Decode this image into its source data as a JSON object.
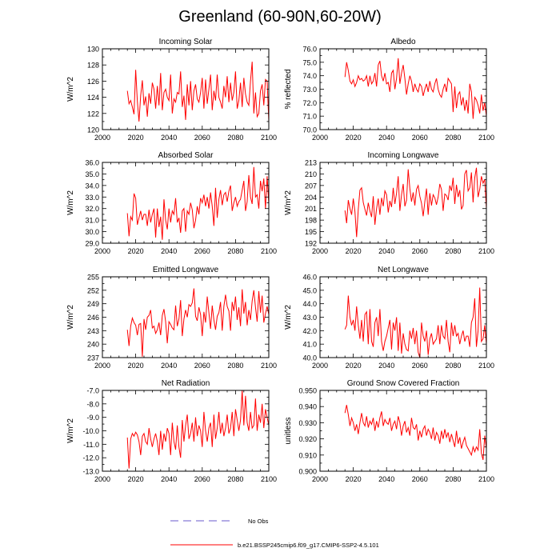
{
  "title": "Greenland (60-90N,60-20W)",
  "legend": {
    "obs_label": "No Obs",
    "obs_color": "#6a5acd",
    "model_label": "b.e21.BSSP245cmip6.f09_g17.CMIP6-SSP2-4.5.101",
    "model_color": "#ff0000"
  },
  "chart_data": [
    {
      "type": "line",
      "title": "Incoming Solar",
      "xlabel": "",
      "ylabel": "W/m^2",
      "xlim": [
        2000,
        2100
      ],
      "ylim": [
        120,
        130
      ],
      "xticks": [
        "2000",
        "2020",
        "2040",
        "2060",
        "2080",
        "2100"
      ],
      "yticks": [
        "120",
        "122",
        "124",
        "126",
        "128",
        "130"
      ],
      "ytick_values": [
        120,
        122,
        124,
        126,
        128,
        130
      ],
      "x_start": 2015,
      "values": [
        124.8,
        123.2,
        123.6,
        122.8,
        121.9,
        127.4,
        123.5,
        121.0,
        124.2,
        126.1,
        123.0,
        124.1,
        121.6,
        124.5,
        123.2,
        125.8,
        125.0,
        122.6,
        125.4,
        123.0,
        127.0,
        122.4,
        124.6,
        125.0,
        124.0,
        123.6,
        126.8,
        122.0,
        123.8,
        123.4,
        124.6,
        124.4,
        127.2,
        122.8,
        124.2,
        121.2,
        125.6,
        123.0,
        126.0,
        122.4,
        124.8,
        125.6,
        123.8,
        123.4,
        124.6,
        126.4,
        122.6,
        126.2,
        123.2,
        125.0,
        126.8,
        122.4,
        124.8,
        123.6,
        126.8,
        124.0,
        123.4,
        122.6,
        125.4,
        124.0,
        126.6,
        123.4,
        125.8,
        123.6,
        124.6,
        127.2,
        122.6,
        123.6,
        125.8,
        122.8,
        126.4,
        124.4,
        123.4,
        123.0,
        126.0,
        128.4,
        122.0,
        124.6,
        121.6,
        122.0,
        124.8,
        125.6,
        123.0,
        126.2,
        126.0,
        121.0
      ]
    },
    {
      "type": "line",
      "title": "Albedo",
      "xlabel": "",
      "ylabel": "% reflected",
      "xlim": [
        2000,
        2100
      ],
      "ylim": [
        70,
        76
      ],
      "xticks": [
        "2000",
        "2020",
        "2040",
        "2060",
        "2080",
        "2100"
      ],
      "yticks": [
        "70.0",
        "71.0",
        "72.0",
        "73.0",
        "74.0",
        "75.0",
        "76.0"
      ],
      "ytick_values": [
        70,
        71,
        72,
        73,
        74,
        75,
        76
      ],
      "x_start": 2015,
      "values": [
        73.9,
        75.0,
        74.4,
        73.6,
        73.4,
        73.7,
        73.2,
        73.5,
        74.0,
        73.7,
        73.8,
        73.6,
        73.7,
        74.0,
        73.2,
        74.0,
        73.4,
        73.6,
        74.2,
        73.2,
        74.8,
        75.1,
        74.0,
        73.6,
        74.2,
        73.4,
        73.5,
        72.8,
        74.2,
        74.4,
        73.0,
        73.8,
        75.3,
        73.4,
        74.2,
        74.8,
        73.8,
        72.6,
        73.4,
        74.0,
        73.6,
        72.8,
        73.4,
        73.0,
        72.8,
        73.4,
        73.2,
        72.5,
        73.0,
        73.4,
        72.8,
        73.6,
        73.0,
        72.8,
        73.4,
        73.8,
        73.0,
        72.6,
        72.4,
        73.0,
        73.4,
        72.8,
        73.8,
        73.6,
        73.4,
        71.3,
        73.2,
        71.6,
        72.6,
        72.8,
        71.8,
        72.4,
        71.4,
        72.2,
        71.2,
        73.4,
        72.8,
        70.8,
        72.4,
        72.2,
        71.8,
        71.2,
        72.6,
        71.4,
        72.0,
        71.0
      ]
    },
    {
      "type": "line",
      "title": "Absorbed Solar",
      "xlabel": "",
      "ylabel": "W/m^2",
      "xlim": [
        2000,
        2100
      ],
      "ylim": [
        29,
        36
      ],
      "xticks": [
        "2000",
        "2020",
        "2040",
        "2060",
        "2080",
        "2100"
      ],
      "yticks": [
        "29.0",
        "30.0",
        "31.0",
        "32.0",
        "33.0",
        "34.0",
        "35.0",
        "36.0"
      ],
      "ytick_values": [
        29,
        30,
        31,
        32,
        33,
        34,
        35,
        36
      ],
      "x_start": 2015,
      "values": [
        31.6,
        29.6,
        31.3,
        31.0,
        33.3,
        32.9,
        30.6,
        31.2,
        31.8,
        31.0,
        31.5,
        31.5,
        30.5,
        31.9,
        30.8,
        31.5,
        32.0,
        29.5,
        32.0,
        30.4,
        31.3,
        29.3,
        32.8,
        31.0,
        30.2,
        32.0,
        30.8,
        31.8,
        31.5,
        32.9,
        30.8,
        31.2,
        29.9,
        31.8,
        32.0,
        30.0,
        31.8,
        31.5,
        32.5,
        31.9,
        30.3,
        31.0,
        32.2,
        31.5,
        32.9,
        32.5,
        33.2,
        32.2,
        33.0,
        32.0,
        33.4,
        32.2,
        30.5,
        33.8,
        31.2,
        32.8,
        33.6,
        32.3,
        33.2,
        33.4,
        32.6,
        33.5,
        34.0,
        31.8,
        32.5,
        33.0,
        32.2,
        32.6,
        32.8,
        33.6,
        34.4,
        31.8,
        32.6,
        34.9,
        33.0,
        32.4,
        35.6,
        33.0,
        33.2,
        32.0,
        34.4,
        33.5,
        34.6,
        32.0,
        34.8,
        32.4
      ]
    },
    {
      "type": "line",
      "title": "Incoming Longwave",
      "xlabel": "",
      "ylabel": "W/m^2",
      "xlim": [
        2000,
        2100
      ],
      "ylim": [
        192,
        213
      ],
      "xticks": [
        "2000",
        "2020",
        "2040",
        "2060",
        "2080",
        "2100"
      ],
      "yticks": [
        "192",
        "195",
        "198",
        "201",
        "204",
        "207",
        "210",
        "213"
      ],
      "ytick_values": [
        192,
        195,
        198,
        201,
        204,
        207,
        210,
        213
      ],
      "x_start": 2015,
      "values": [
        200.5,
        197.2,
        203.2,
        201.0,
        199.4,
        203.6,
        200.2,
        193.6,
        200.8,
        205.8,
        206.4,
        202.6,
        200.8,
        199.2,
        202.5,
        200.4,
        198.8,
        204.2,
        196.8,
        201.0,
        203.6,
        199.4,
        203.8,
        201.6,
        205.6,
        204.6,
        200.0,
        203.0,
        201.4,
        206.4,
        202.2,
        205.0,
        209.4,
        200.4,
        204.6,
        207.4,
        201.6,
        203.2,
        211.2,
        206.2,
        202.8,
        205.2,
        201.8,
        206.0,
        207.0,
        204.2,
        202.4,
        199.0,
        202.8,
        206.2,
        199.4,
        205.0,
        201.8,
        204.6,
        203.8,
        202.0,
        204.0,
        207.4,
        206.0,
        200.4,
        204.8,
        204.4,
        203.2,
        207.0,
        205.6,
        209.0,
        202.2,
        207.2,
        204.0,
        205.8,
        200.8,
        201.8,
        210.0,
        211.0,
        205.6,
        206.4,
        210.4,
        202.6,
        209.0,
        211.6,
        204.0,
        206.0,
        209.4,
        207.6,
        208.6,
        201.0
      ]
    },
    {
      "type": "line",
      "title": "Emitted Longwave",
      "xlabel": "",
      "ylabel": "W/m^2",
      "xlim": [
        2000,
        2100
      ],
      "ylim": [
        237,
        255
      ],
      "xticks": [
        "2000",
        "2020",
        "2040",
        "2060",
        "2080",
        "2100"
      ],
      "yticks": [
        "237",
        "240",
        "243",
        "246",
        "249",
        "252",
        "255"
      ],
      "ytick_values": [
        237,
        240,
        243,
        246,
        249,
        252,
        255
      ],
      "x_start": 2015,
      "values": [
        243.2,
        239.6,
        244.0,
        245.8,
        244.8,
        244.2,
        242.0,
        244.4,
        244.6,
        237.2,
        245.6,
        243.2,
        246.0,
        246.4,
        247.6,
        243.6,
        244.0,
        242.4,
        243.2,
        244.8,
        242.0,
        246.4,
        247.8,
        245.0,
        240.2,
        245.0,
        244.4,
        243.6,
        243.2,
        248.6,
        244.0,
        245.6,
        249.8,
        241.8,
        245.6,
        247.6,
        246.0,
        248.8,
        248.4,
        249.2,
        252.4,
        246.2,
        245.2,
        248.2,
        246.6,
        241.8,
        247.2,
        244.8,
        250.6,
        247.0,
        243.4,
        248.6,
        245.4,
        243.2,
        246.2,
        247.0,
        249.4,
        243.0,
        248.4,
        251.0,
        248.4,
        247.4,
        243.0,
        249.4,
        247.4,
        250.6,
        245.4,
        248.2,
        244.0,
        252.2,
        246.8,
        249.4,
        244.2,
        247.6,
        245.4,
        249.6,
        252.0,
        248.2,
        245.0,
        251.8,
        247.0,
        250.8,
        244.8,
        246.8,
        248.4,
        246.6
      ]
    },
    {
      "type": "line",
      "title": "Net Longwave",
      "xlabel": "",
      "ylabel": "W/m^2",
      "xlim": [
        2000,
        2100
      ],
      "ylim": [
        40,
        46
      ],
      "xticks": [
        "2000",
        "2020",
        "2040",
        "2060",
        "2080",
        "2100"
      ],
      "yticks": [
        "40.0",
        "41.0",
        "42.0",
        "43.0",
        "44.0",
        "45.0",
        "46.0"
      ],
      "ytick_values": [
        40,
        41,
        42,
        43,
        44,
        45,
        46
      ],
      "x_start": 2015,
      "values": [
        42.1,
        42.4,
        44.6,
        43.0,
        42.4,
        42.8,
        42.0,
        43.8,
        42.4,
        41.4,
        42.8,
        41.2,
        43.2,
        43.4,
        41.0,
        43.6,
        41.2,
        40.8,
        42.6,
        43.0,
        41.6,
        43.6,
        41.2,
        40.5,
        41.2,
        41.6,
        42.2,
        42.8,
        40.6,
        42.6,
        42.0,
        43.0,
        40.5,
        42.6,
        40.3,
        41.8,
        41.0,
        40.6,
        40.5,
        42.0,
        41.4,
        42.2,
        41.0,
        42.0,
        40.4,
        40.0,
        42.6,
        41.6,
        41.2,
        42.0,
        40.2,
        41.4,
        41.8,
        41.0,
        41.2,
        41.4,
        42.4,
        41.0,
        42.4,
        41.6,
        41.4,
        42.8,
        41.2,
        40.4,
        42.6,
        41.6,
        42.4,
        41.6,
        41.8,
        41.0,
        41.6,
        42.0,
        41.2,
        41.6,
        41.6,
        40.8,
        42.6,
        43.0,
        44.4,
        40.8,
        42.0,
        45.2,
        41.2,
        41.4,
        42.4,
        41.0
      ]
    },
    {
      "type": "line",
      "title": "Net Radiation",
      "xlabel": "",
      "ylabel": "W/m^2",
      "xlim": [
        2000,
        2100
      ],
      "ylim": [
        -13,
        -7
      ],
      "xticks": [
        "2000",
        "2020",
        "2040",
        "2060",
        "2080",
        "2100"
      ],
      "yticks": [
        "-13.0",
        "-12.0",
        "-11.0",
        "-10.0",
        "-9.0",
        "-8.0",
        "-7.0"
      ],
      "ytick_values": [
        -13,
        -12,
        -11,
        -10,
        -9,
        -8,
        -7
      ],
      "x_start": 2015,
      "values": [
        -10.5,
        -12.8,
        -10.6,
        -10.2,
        -10.4,
        -10.1,
        -10.3,
        -10.8,
        -11.8,
        -10.4,
        -10.2,
        -10.8,
        -11.0,
        -9.8,
        -10.6,
        -11.2,
        -10.6,
        -10.2,
        -10.8,
        -11.8,
        -10.0,
        -11.4,
        -10.2,
        -10.8,
        -9.8,
        -10.2,
        -11.8,
        -9.4,
        -10.8,
        -11.4,
        -9.6,
        -11.2,
        -12.0,
        -9.2,
        -10.8,
        -9.6,
        -8.8,
        -10.6,
        -10.2,
        -9.4,
        -10.8,
        -9.0,
        -10.4,
        -9.6,
        -10.0,
        -11.2,
        -8.6,
        -10.0,
        -10.8,
        -9.8,
        -9.4,
        -11.2,
        -8.8,
        -10.6,
        -9.8,
        -8.6,
        -10.2,
        -9.4,
        -10.4,
        -9.8,
        -8.8,
        -10.2,
        -9.8,
        -8.6,
        -10.4,
        -8.4,
        -9.2,
        -10.0,
        -9.2,
        -7.0,
        -9.6,
        -7.4,
        -9.4,
        -10.0,
        -8.6,
        -9.8,
        -9.6,
        -7.6,
        -10.0,
        -8.8,
        -9.4,
        -8.0,
        -9.8,
        -8.4,
        -9.0,
        -9.6
      ]
    },
    {
      "type": "line",
      "title": "Ground Snow Covered Fraction",
      "xlabel": "",
      "ylabel": "unitless",
      "xlim": [
        2000,
        2100
      ],
      "ylim": [
        0.9,
        0.95
      ],
      "xticks": [
        "2000",
        "2020",
        "2040",
        "2060",
        "2080",
        "2100"
      ],
      "yticks": [
        "0.900",
        "0.910",
        "0.920",
        "0.930",
        "0.940",
        "0.950"
      ],
      "ytick_values": [
        0.9,
        0.91,
        0.92,
        0.93,
        0.94,
        0.95
      ],
      "x_start": 2015,
      "values": [
        0.936,
        0.941,
        0.935,
        0.928,
        0.933,
        0.93,
        0.925,
        0.929,
        0.923,
        0.93,
        0.936,
        0.93,
        0.928,
        0.934,
        0.927,
        0.931,
        0.929,
        0.933,
        0.925,
        0.931,
        0.927,
        0.933,
        0.937,
        0.928,
        0.932,
        0.93,
        0.929,
        0.933,
        0.925,
        0.929,
        0.931,
        0.926,
        0.934,
        0.93,
        0.922,
        0.928,
        0.931,
        0.924,
        0.927,
        0.922,
        0.933,
        0.927,
        0.926,
        0.929,
        0.919,
        0.925,
        0.921,
        0.926,
        0.928,
        0.922,
        0.926,
        0.924,
        0.92,
        0.927,
        0.919,
        0.924,
        0.922,
        0.917,
        0.925,
        0.92,
        0.926,
        0.921,
        0.924,
        0.918,
        0.923,
        0.919,
        0.915,
        0.925,
        0.917,
        0.921,
        0.914,
        0.918,
        0.921,
        0.916,
        0.914,
        0.912,
        0.91,
        0.915,
        0.912,
        0.915,
        0.913,
        0.926,
        0.911,
        0.907,
        0.922,
        0.914
      ]
    }
  ]
}
